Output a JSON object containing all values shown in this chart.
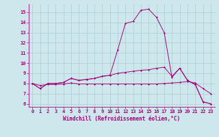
{
  "xlabel": "Windchill (Refroidissement éolien,°C)",
  "background_color": "#cce8ec",
  "grid_color": "#aaccd4",
  "line_color": "#aa0077",
  "xlim": [
    -0.5,
    23.5
  ],
  "ylim": [
    5.7,
    15.8
  ],
  "xticks": [
    0,
    1,
    2,
    3,
    4,
    5,
    6,
    7,
    8,
    9,
    10,
    11,
    12,
    13,
    14,
    15,
    16,
    17,
    18,
    19,
    20,
    21,
    22,
    23
  ],
  "yticks": [
    6,
    7,
    8,
    9,
    10,
    11,
    12,
    13,
    14,
    15
  ],
  "line1_x": [
    0,
    1,
    2,
    3,
    4,
    5,
    6,
    7,
    8,
    9,
    10,
    11,
    12,
    13,
    14,
    15,
    16,
    17,
    18,
    19,
    20,
    21,
    22,
    23
  ],
  "line1_y": [
    8.0,
    7.5,
    8.0,
    8.0,
    8.1,
    8.5,
    8.3,
    8.4,
    8.5,
    8.7,
    8.8,
    11.3,
    13.9,
    14.1,
    15.2,
    15.3,
    14.5,
    13.0,
    8.6,
    9.5,
    8.3,
    7.9,
    6.2,
    6.0
  ],
  "line2_x": [
    0,
    1,
    2,
    3,
    4,
    5,
    6,
    7,
    8,
    9,
    10,
    11,
    12,
    13,
    14,
    15,
    16,
    17,
    18,
    19,
    20,
    21,
    22,
    23
  ],
  "line2_y": [
    8.0,
    7.5,
    8.0,
    8.0,
    8.1,
    8.5,
    8.3,
    8.4,
    8.5,
    8.7,
    8.8,
    9.0,
    9.1,
    9.2,
    9.3,
    9.35,
    9.5,
    9.6,
    8.7,
    9.5,
    8.3,
    7.9,
    6.2,
    6.0
  ],
  "line3_x": [
    0,
    1,
    2,
    3,
    4,
    5,
    6,
    7,
    8,
    9,
    10,
    11,
    12,
    13,
    14,
    15,
    16,
    17,
    18,
    19,
    20,
    21,
    22,
    23
  ],
  "line3_y": [
    8.0,
    7.8,
    7.9,
    7.9,
    7.95,
    8.05,
    7.95,
    7.95,
    7.95,
    7.95,
    7.95,
    7.95,
    7.95,
    7.95,
    7.95,
    7.95,
    7.95,
    8.0,
    8.05,
    8.1,
    8.2,
    8.05,
    7.5,
    7.0
  ],
  "xlabel_fontsize": 5.5,
  "tick_fontsize": 5.0
}
